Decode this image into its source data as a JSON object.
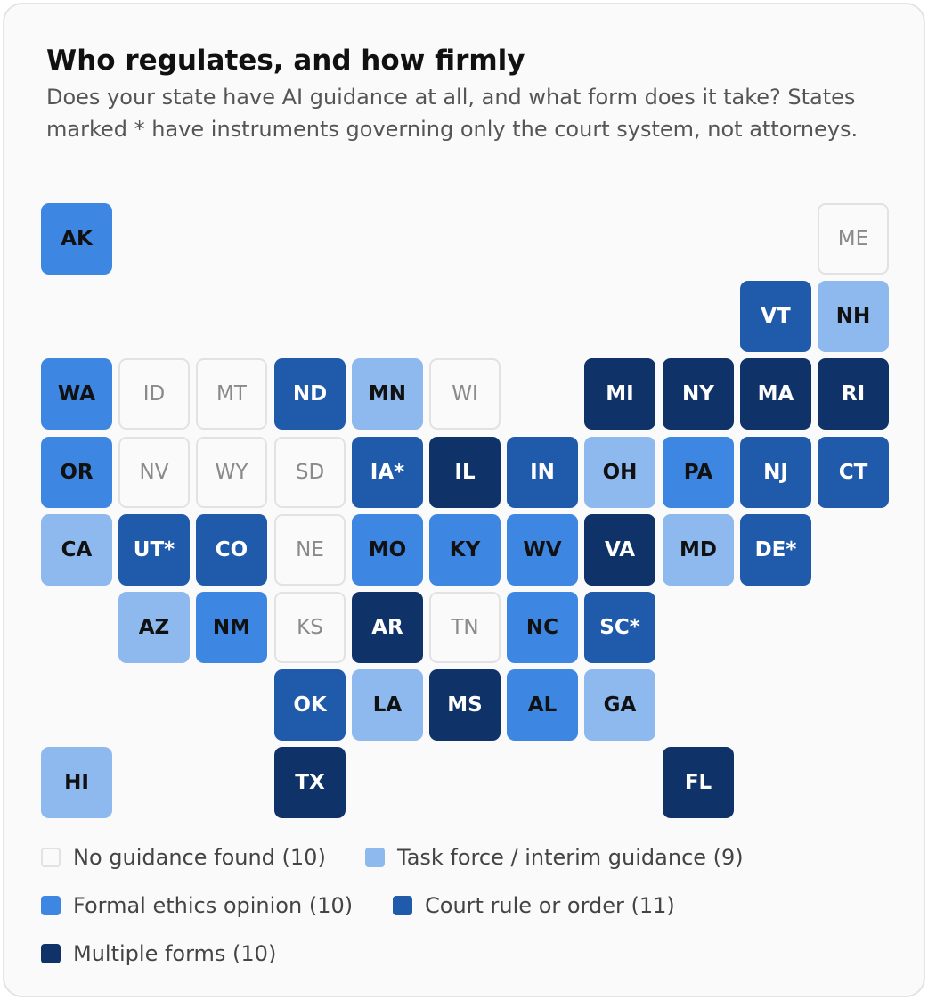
{
  "chart_data": {
    "type": "tile-map",
    "title": "Who regulates, and how firmly",
    "subtitle": "Does your state have AI guidance at all, and what form does it take? States marked * have instruments governing only the court system, not attorneys.",
    "categories": [
      {
        "name": "No guidance found",
        "count": 10,
        "color": "#fafafa"
      },
      {
        "name": "Task force / interim guidance",
        "count": 9,
        "color": "#8db9ee"
      },
      {
        "name": "Formal ethics opinion",
        "count": 10,
        "color": "#3d87e3"
      },
      {
        "name": "Court rule or order",
        "count": 11,
        "color": "#1f5aab"
      },
      {
        "name": "Multiple forms",
        "count": 10,
        "color": "#0f3368"
      }
    ],
    "states": [
      {
        "label": "AK",
        "category": 2
      },
      {
        "label": "ME",
        "category": 0
      },
      {
        "label": "VT",
        "category": 3
      },
      {
        "label": "NH",
        "category": 1
      },
      {
        "label": "WA",
        "category": 2
      },
      {
        "label": "ID",
        "category": 0
      },
      {
        "label": "MT",
        "category": 0
      },
      {
        "label": "ND",
        "category": 3
      },
      {
        "label": "MN",
        "category": 1
      },
      {
        "label": "WI",
        "category": 0
      },
      {
        "label": "MI",
        "category": 4
      },
      {
        "label": "NY",
        "category": 4
      },
      {
        "label": "MA",
        "category": 4
      },
      {
        "label": "RI",
        "category": 4
      },
      {
        "label": "OR",
        "category": 2
      },
      {
        "label": "NV",
        "category": 0
      },
      {
        "label": "WY",
        "category": 0
      },
      {
        "label": "SD",
        "category": 0
      },
      {
        "label": "IA*",
        "category": 3
      },
      {
        "label": "IL",
        "category": 4
      },
      {
        "label": "IN",
        "category": 3
      },
      {
        "label": "OH",
        "category": 1
      },
      {
        "label": "PA",
        "category": 2
      },
      {
        "label": "NJ",
        "category": 3
      },
      {
        "label": "CT",
        "category": 3
      },
      {
        "label": "CA",
        "category": 1
      },
      {
        "label": "UT*",
        "category": 3
      },
      {
        "label": "CO",
        "category": 3
      },
      {
        "label": "NE",
        "category": 0
      },
      {
        "label": "MO",
        "category": 2
      },
      {
        "label": "KY",
        "category": 2
      },
      {
        "label": "WV",
        "category": 2
      },
      {
        "label": "VA",
        "category": 4
      },
      {
        "label": "MD",
        "category": 1
      },
      {
        "label": "DE*",
        "category": 3
      },
      {
        "label": "AZ",
        "category": 1
      },
      {
        "label": "NM",
        "category": 2
      },
      {
        "label": "KS",
        "category": 0
      },
      {
        "label": "AR",
        "category": 4
      },
      {
        "label": "TN",
        "category": 0
      },
      {
        "label": "NC",
        "category": 2
      },
      {
        "label": "SC*",
        "category": 3
      },
      {
        "label": "OK",
        "category": 3
      },
      {
        "label": "LA",
        "category": 1
      },
      {
        "label": "MS",
        "category": 4
      },
      {
        "label": "AL",
        "category": 2
      },
      {
        "label": "GA",
        "category": 1
      },
      {
        "label": "HI",
        "category": 1
      },
      {
        "label": "TX",
        "category": 4
      },
      {
        "label": "FL",
        "category": 4
      }
    ],
    "legend": [
      "No guidance found (10)",
      "Task force / interim guidance (9)",
      "Formal ethics opinion (10)",
      "Court rule or order (11)",
      "Multiple forms (10)"
    ]
  }
}
